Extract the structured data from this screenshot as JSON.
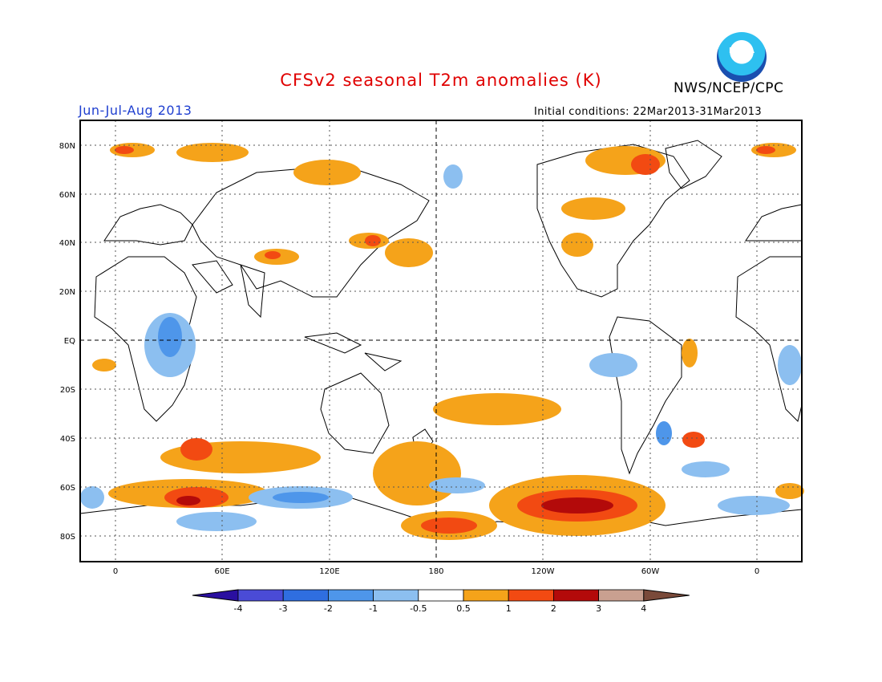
{
  "title": "CFSv2 seasonal T2m anomalies (K)",
  "agency": "NWS/NCEP/CPC",
  "logo_text": "NOAA",
  "season": "Jun-Jul-Aug 2013",
  "initial_conditions": "Initial conditions: 22Mar2013-31Mar2013",
  "axes": {
    "lat_labels": [
      "80N",
      "60N",
      "40N",
      "20N",
      "EQ",
      "20S",
      "40S",
      "60S",
      "80S"
    ],
    "lon_labels": [
      "0",
      "60E",
      "120E",
      "180",
      "120W",
      "60W",
      "0"
    ]
  },
  "colorbar": {
    "labels": [
      "-4",
      "-3",
      "-2",
      "-1",
      "-0.5",
      "0.5",
      "1",
      "2",
      "3",
      "4"
    ],
    "colors": [
      "#2a0fa0",
      "#4a4bd6",
      "#2f6ee0",
      "#4e96ea",
      "#8cbff0",
      "#ffffff",
      "#f5a31a",
      "#f24a12",
      "#b30a0a",
      "#c9a090",
      "#7a4a3a"
    ]
  }
}
